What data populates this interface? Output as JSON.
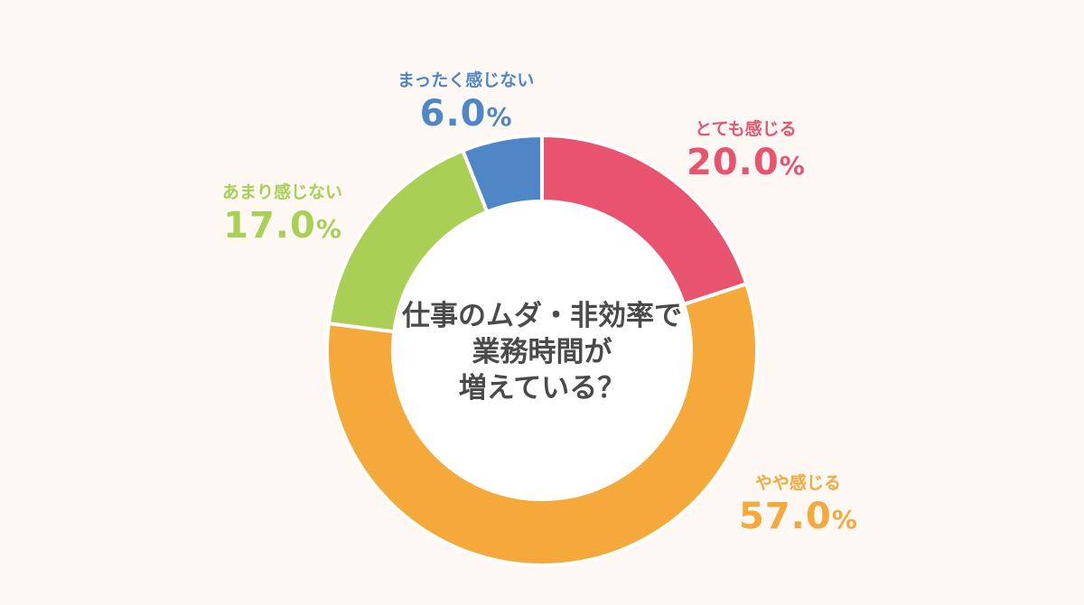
{
  "chart_data": {
    "type": "pie",
    "title": "仕事のムダ・非効率で業務時間が増えている？",
    "title_lines": [
      "仕事のムダ・非効率で",
      "業務時間が",
      "増えている？"
    ],
    "unit": "%",
    "slices": [
      {
        "label": "とても感じる",
        "value": 20.0,
        "value_text": "20.0",
        "color": "#e8546f"
      },
      {
        "label": "やや感じる",
        "value": 57.0,
        "value_text": "57.0",
        "color": "#f5a93a"
      },
      {
        "label": "あまり感じない",
        "value": 17.0,
        "value_text": "17.0",
        "color": "#a9cf55"
      },
      {
        "label": "まったく感じない",
        "value": 6.0,
        "value_text": "6.0",
        "color": "#4f86c6"
      }
    ],
    "donut": true,
    "start_angle": "12 o'clock",
    "direction": "clockwise",
    "legend": "none"
  },
  "colors": {
    "background": "#fdf8f4",
    "center_text": "#4a4a4a",
    "slice_separator": "#ffffff"
  }
}
